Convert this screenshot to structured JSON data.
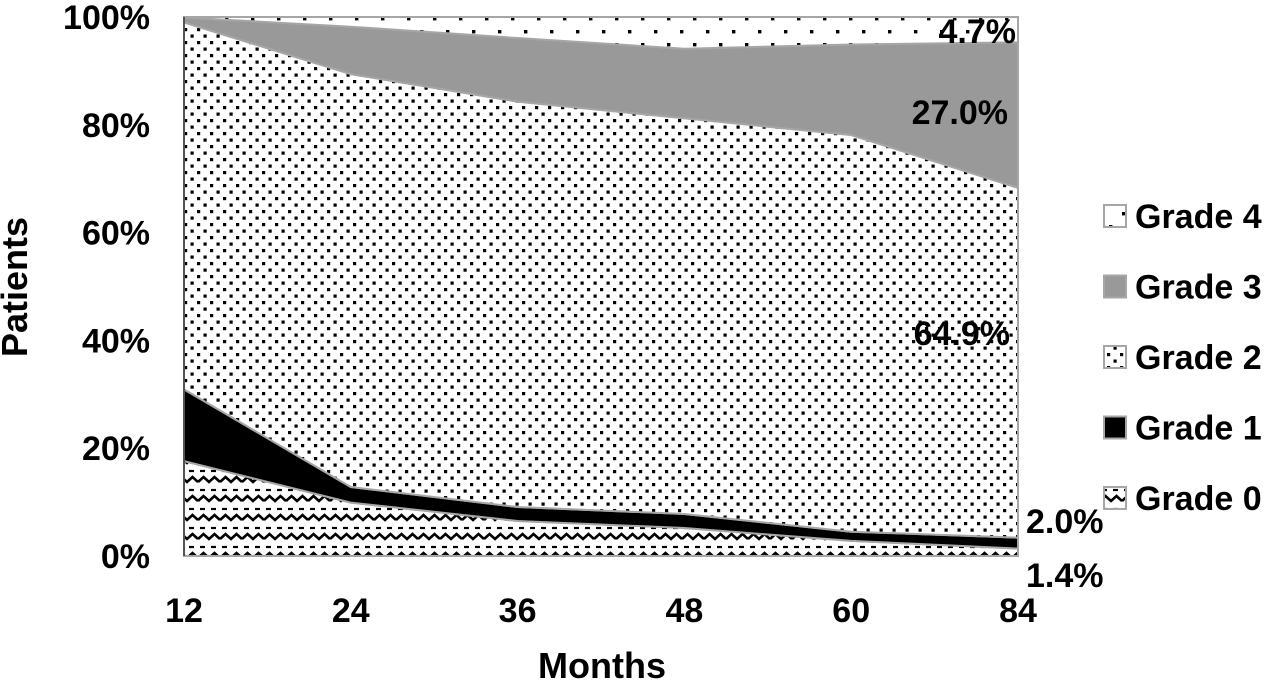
{
  "chart_data": {
    "type": "area",
    "stacked": "percent",
    "title": "",
    "xlabel": "Months",
    "ylabel": "Patients",
    "categories": [
      "12",
      "24",
      "36",
      "48",
      "60",
      "84"
    ],
    "y_ticks": [
      "0%",
      "20%",
      "40%",
      "60%",
      "80%",
      "100%"
    ],
    "ylim": [
      0,
      100
    ],
    "grid": false,
    "legend_position": "right",
    "series": [
      {
        "name": "Grade 0",
        "values": [
          17.6,
          9.9,
          6.5,
          5.2,
          2.8,
          1.4
        ],
        "pattern": "zigzag"
      },
      {
        "name": "Grade 1",
        "values": [
          13.3,
          2.9,
          2.6,
          2.6,
          1.7,
          2.0
        ],
        "pattern": "solid-black"
      },
      {
        "name": "Grade 2",
        "values": [
          68.1,
          76.6,
          75.2,
          73.4,
          73.6,
          64.9
        ],
        "pattern": "dots"
      },
      {
        "name": "Grade 3",
        "values": [
          0.9,
          8.8,
          11.8,
          12.9,
          16.8,
          27.0
        ],
        "pattern": "solid-gray"
      },
      {
        "name": "Grade 4",
        "values": [
          0.1,
          1.8,
          3.9,
          5.9,
          5.1,
          4.7
        ],
        "pattern": "sparse-dots"
      }
    ],
    "data_labels": [
      {
        "text": "4.7%",
        "series": "Grade 4"
      },
      {
        "text": "27.0%",
        "series": "Grade 3"
      },
      {
        "text": "64.9%",
        "series": "Grade 2"
      },
      {
        "text": "2.0%",
        "series": "Grade 1"
      },
      {
        "text": "1.4%",
        "series": "Grade 0"
      }
    ],
    "colors": {
      "grade3": "#999999",
      "grade1": "#000000",
      "outline": "#a6a6a6"
    }
  }
}
